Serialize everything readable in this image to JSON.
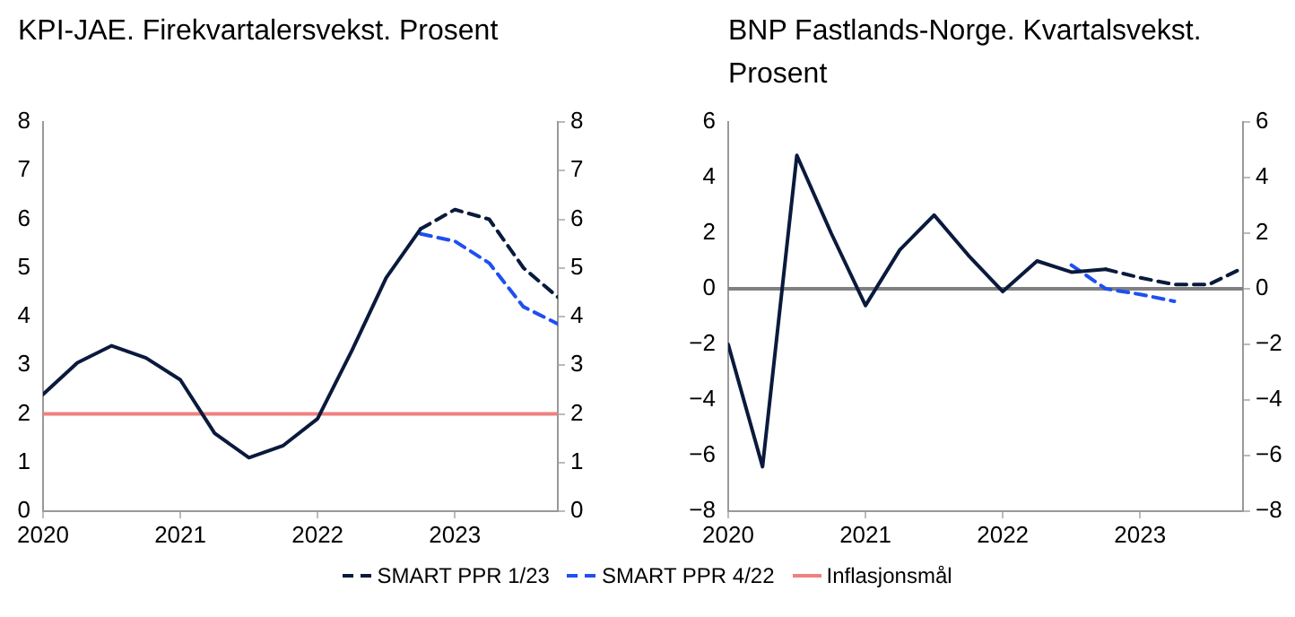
{
  "chart_data": [
    {
      "type": "line",
      "title": "KPI-JAE. Firekvartalersvekst. Prosent",
      "xlim": [
        2020,
        2023.75
      ],
      "xticks": [
        2020,
        2021,
        2022,
        2023
      ],
      "ylim": [
        0,
        8
      ],
      "yticks": [
        0,
        1,
        2,
        3,
        4,
        5,
        6,
        7,
        8
      ],
      "y2lim": [
        0,
        8
      ],
      "y2ticks": [
        0,
        1,
        2,
        3,
        4,
        5,
        6,
        7,
        8
      ],
      "legend": "bottom",
      "series": [
        {
          "color": "#0a1a3c",
          "line_style": "solid",
          "x": [
            2020,
            2020.25,
            2020.5,
            2020.75,
            2021,
            2021.25,
            2021.5,
            2021.75,
            2022,
            2022.25,
            2022.5,
            2022.75
          ],
          "values": [
            2.4,
            3.05,
            3.4,
            3.15,
            2.7,
            1.6,
            1.1,
            1.35,
            1.9,
            3.3,
            4.8,
            5.8
          ]
        },
        {
          "name": "SMART PPR 1/23",
          "color": "#0a1a3c",
          "line_style": "dashed",
          "x": [
            2022.75,
            2023,
            2023.25,
            2023.5,
            2023.75
          ],
          "values": [
            5.8,
            6.2,
            6.0,
            5.0,
            4.4
          ]
        },
        {
          "name": "SMART PPR 4/22",
          "color": "#1f4ff0",
          "line_style": "dashed",
          "x": [
            2022.75,
            2023,
            2023.25,
            2023.5,
            2023.75
          ],
          "values": [
            5.7,
            5.55,
            5.1,
            4.2,
            3.85
          ]
        }
      ],
      "ref_lines": [
        {
          "axis": "y",
          "value": 2,
          "label": "Inflasjonsmål",
          "color": "#f08080",
          "line_style": "solid"
        }
      ]
    },
    {
      "type": "line",
      "title": "BNP Fastlands-Norge. Kvartalsvekst. Prosent",
      "xlim": [
        2020,
        2023.75
      ],
      "xticks": [
        2020,
        2021,
        2022,
        2023
      ],
      "ylim": [
        -8,
        6
      ],
      "yticks": [
        -8,
        -6,
        -4,
        -2,
        0,
        2,
        4,
        6
      ],
      "y2lim": [
        -8,
        6
      ],
      "y2ticks": [
        -8,
        -6,
        -4,
        -2,
        0,
        2,
        4,
        6
      ],
      "legend": "bottom",
      "series": [
        {
          "color": "#0a1a3c",
          "line_style": "solid",
          "x": [
            2020,
            2020.25,
            2020.5,
            2020.75,
            2021,
            2021.25,
            2021.5,
            2021.75,
            2022,
            2022.25,
            2022.5,
            2022.75
          ],
          "values": [
            -2.0,
            -6.4,
            4.8,
            2.0,
            -0.6,
            1.4,
            2.65,
            1.2,
            -0.1,
            1.0,
            0.6,
            0.7
          ]
        },
        {
          "name": "SMART PPR 1/23",
          "color": "#0a1a3c",
          "line_style": "dashed",
          "x": [
            2022.75,
            2023,
            2023.25,
            2023.5,
            2023.75
          ],
          "values": [
            0.7,
            0.4,
            0.15,
            0.15,
            0.75
          ]
        },
        {
          "name": "SMART PPR 4/22",
          "color": "#1f4ff0",
          "line_style": "dashed",
          "x": [
            2022.5,
            2022.75,
            2023,
            2023.25
          ],
          "values": [
            0.85,
            0.0,
            -0.2,
            -0.45
          ]
        }
      ],
      "ref_lines": [
        {
          "axis": "y",
          "value": 0,
          "color": "#808080",
          "line_style": "solid"
        }
      ]
    }
  ]
}
